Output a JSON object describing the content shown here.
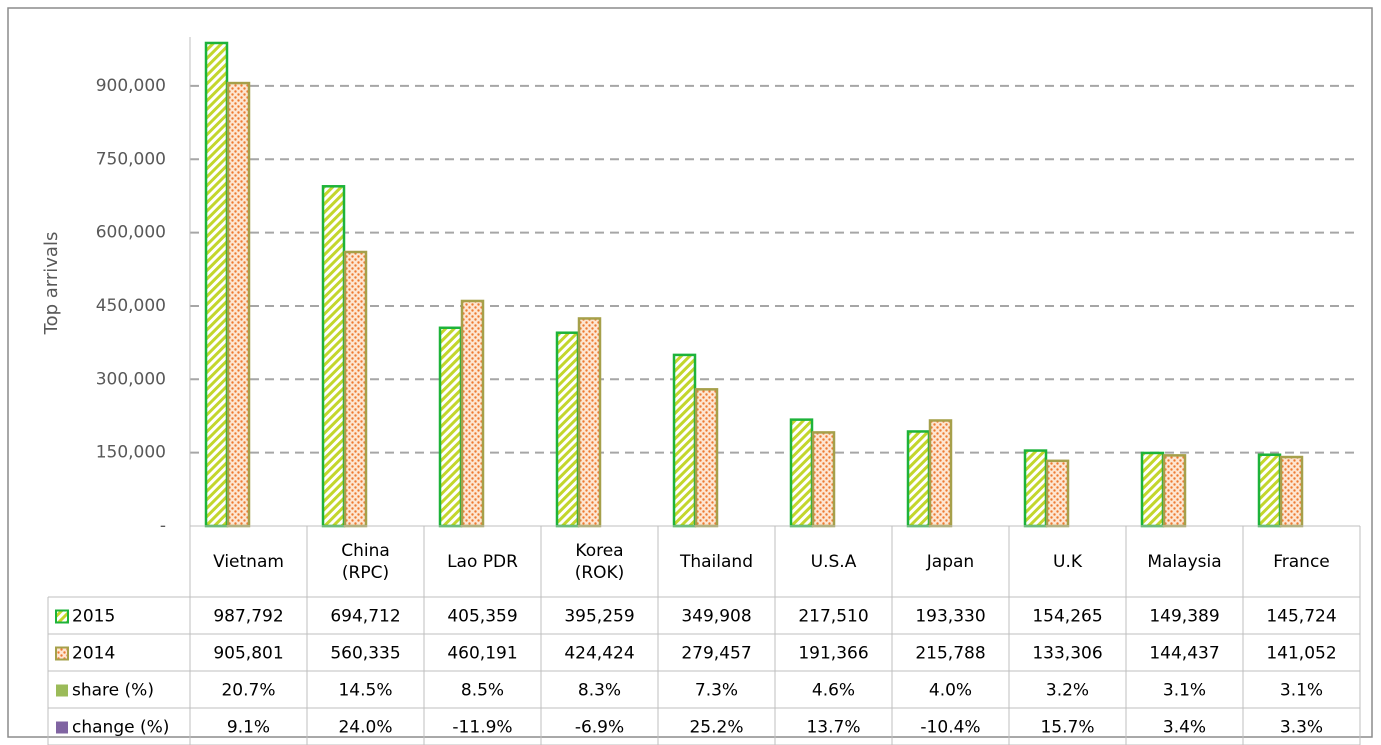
{
  "chart_data": {
    "type": "bar",
    "y_axis_label": "Top arrivals",
    "categories": [
      "Vietnam",
      "China\n(RPC)",
      "Lao PDR",
      "Korea\n(ROK)",
      "Thailand",
      "U.S.A",
      "Japan",
      "U.K",
      "Malaysia",
      "France"
    ],
    "ylim": [
      0,
      1000000
    ],
    "yticks": [
      {
        "value": 0,
        "label": "-"
      },
      {
        "value": 150000,
        "label": "150,000"
      },
      {
        "value": 300000,
        "label": "300,000"
      },
      {
        "value": 450000,
        "label": "450,000"
      },
      {
        "value": 600000,
        "label": "600,000"
      },
      {
        "value": 750000,
        "label": "750,000"
      },
      {
        "value": 900000,
        "label": "900,000"
      }
    ],
    "grid": true,
    "series": [
      {
        "name": "2015",
        "color": "#1db33a",
        "values": [
          987792,
          694712,
          405359,
          395259,
          349908,
          217510,
          193330,
          154265,
          149389,
          145724
        ],
        "value_labels": [
          "987,792",
          "694,712",
          "405,359",
          "395,259",
          "349,908",
          "217,510",
          "193,330",
          "154,265",
          "149,389",
          "145,724"
        ]
      },
      {
        "name": "2014",
        "color": "#a6a04a",
        "values": [
          905801,
          560335,
          460191,
          424424,
          279457,
          191366,
          215788,
          133306,
          144437,
          141052
        ],
        "value_labels": [
          "905,801",
          "560,335",
          "460,191",
          "424,424",
          "279,457",
          "191,366",
          "215,788",
          "133,306",
          "144,437",
          "141,052"
        ]
      },
      {
        "name": "share (%)",
        "color": "#9bbb59",
        "table_only": true,
        "values": [
          20.7,
          14.5,
          8.5,
          8.3,
          7.3,
          4.6,
          4.0,
          3.2,
          3.1,
          3.1
        ],
        "value_labels": [
          "20.7%",
          "14.5%",
          "8.5%",
          "8.3%",
          "7.3%",
          "4.6%",
          "4.0%",
          "3.2%",
          "3.1%",
          "3.1%"
        ]
      },
      {
        "name": "change (%)",
        "color": "#8064a2",
        "table_only": true,
        "values": [
          9.1,
          24.0,
          -11.9,
          -6.9,
          25.2,
          13.7,
          -10.4,
          15.7,
          3.4,
          3.3
        ],
        "value_labels": [
          "9.1%",
          "24.0%",
          "-11.9%",
          "-6.9%",
          "25.2%",
          "13.7%",
          "-10.4%",
          "15.7%",
          "3.4%",
          "3.3%"
        ]
      }
    ]
  }
}
